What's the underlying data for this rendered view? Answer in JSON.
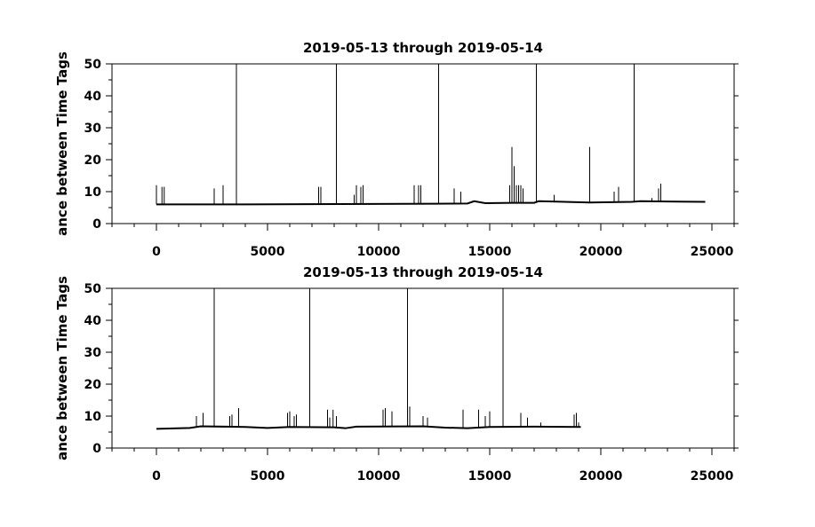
{
  "chart_data": [
    {
      "type": "line",
      "title": "2019-05-13 through 2019-05-14",
      "ylabel": "ance between Time Tags",
      "xlabel": "",
      "xlim": [
        -2000,
        26000
      ],
      "ylim": [
        0,
        50
      ],
      "xticks": [
        0,
        5000,
        10000,
        15000,
        20000,
        25000
      ],
      "yticks": [
        0,
        10,
        20,
        30,
        40,
        50
      ],
      "x_extent": [
        0,
        24700
      ],
      "baseline": [
        [
          0,
          6.0
        ],
        [
          4000,
          6.0
        ],
        [
          8200,
          6.1
        ],
        [
          12500,
          6.2
        ],
        [
          14000,
          6.3
        ],
        [
          14300,
          7.0
        ],
        [
          14800,
          6.4
        ],
        [
          16000,
          6.5
        ],
        [
          17000,
          6.5
        ],
        [
          17200,
          7.0
        ],
        [
          19500,
          6.6
        ],
        [
          21400,
          6.8
        ],
        [
          21800,
          7.0
        ],
        [
          23000,
          6.9
        ],
        [
          24700,
          6.8
        ]
      ],
      "spikes": [
        {
          "x": 0,
          "y": 12
        },
        {
          "x": 250,
          "y": 11.5
        },
        {
          "x": 350,
          "y": 11.5
        },
        {
          "x": 2600,
          "y": 11
        },
        {
          "x": 3000,
          "y": 12
        },
        {
          "x": 3600,
          "y": 50
        },
        {
          "x": 7300,
          "y": 11.5
        },
        {
          "x": 7400,
          "y": 11.5
        },
        {
          "x": 8100,
          "y": 50
        },
        {
          "x": 8900,
          "y": 9
        },
        {
          "x": 9000,
          "y": 12
        },
        {
          "x": 9200,
          "y": 11.5
        },
        {
          "x": 9300,
          "y": 12
        },
        {
          "x": 11600,
          "y": 12
        },
        {
          "x": 11800,
          "y": 12
        },
        {
          "x": 11900,
          "y": 12
        },
        {
          "x": 12700,
          "y": 50
        },
        {
          "x": 13400,
          "y": 11
        },
        {
          "x": 13700,
          "y": 10
        },
        {
          "x": 15900,
          "y": 12
        },
        {
          "x": 16000,
          "y": 24
        },
        {
          "x": 16100,
          "y": 18
        },
        {
          "x": 16200,
          "y": 12
        },
        {
          "x": 16300,
          "y": 12
        },
        {
          "x": 16400,
          "y": 12
        },
        {
          "x": 16500,
          "y": 11
        },
        {
          "x": 17100,
          "y": 50
        },
        {
          "x": 17900,
          "y": 9
        },
        {
          "x": 19500,
          "y": 24
        },
        {
          "x": 20600,
          "y": 10
        },
        {
          "x": 20800,
          "y": 11.5
        },
        {
          "x": 21500,
          "y": 50
        },
        {
          "x": 22300,
          "y": 8
        },
        {
          "x": 22600,
          "y": 11
        },
        {
          "x": 22700,
          "y": 12.5
        }
      ]
    },
    {
      "type": "line",
      "title": "2019-05-13 through 2019-05-14",
      "ylabel": "ance between Time Tags",
      "xlabel": "",
      "xlim": [
        -2000,
        26000
      ],
      "ylim": [
        0,
        50
      ],
      "xticks": [
        0,
        5000,
        10000,
        15000,
        20000,
        25000
      ],
      "yticks": [
        0,
        10,
        20,
        30,
        40,
        50
      ],
      "x_extent": [
        0,
        19100
      ],
      "baseline": [
        [
          0,
          6.0
        ],
        [
          1500,
          6.3
        ],
        [
          2000,
          6.8
        ],
        [
          4000,
          6.6
        ],
        [
          5000,
          6.3
        ],
        [
          6000,
          6.6
        ],
        [
          8000,
          6.5
        ],
        [
          8500,
          6.2
        ],
        [
          9000,
          6.7
        ],
        [
          12000,
          6.8
        ],
        [
          13000,
          6.4
        ],
        [
          14000,
          6.2
        ],
        [
          15000,
          6.6
        ],
        [
          17000,
          6.7
        ],
        [
          19100,
          6.6
        ]
      ],
      "spikes": [
        {
          "x": 1800,
          "y": 10
        },
        {
          "x": 2100,
          "y": 11
        },
        {
          "x": 2600,
          "y": 50
        },
        {
          "x": 3300,
          "y": 10
        },
        {
          "x": 3400,
          "y": 10.5
        },
        {
          "x": 3700,
          "y": 12.5
        },
        {
          "x": 5900,
          "y": 11
        },
        {
          "x": 6000,
          "y": 11.5
        },
        {
          "x": 6200,
          "y": 10
        },
        {
          "x": 6300,
          "y": 10.5
        },
        {
          "x": 6900,
          "y": 50
        },
        {
          "x": 7700,
          "y": 12
        },
        {
          "x": 7800,
          "y": 9.5
        },
        {
          "x": 7950,
          "y": 12
        },
        {
          "x": 8100,
          "y": 10
        },
        {
          "x": 10200,
          "y": 12
        },
        {
          "x": 10300,
          "y": 12.5
        },
        {
          "x": 10600,
          "y": 11.5
        },
        {
          "x": 11300,
          "y": 50
        },
        {
          "x": 11400,
          "y": 13
        },
        {
          "x": 12000,
          "y": 10
        },
        {
          "x": 12200,
          "y": 9.5
        },
        {
          "x": 13800,
          "y": 12
        },
        {
          "x": 14500,
          "y": 12
        },
        {
          "x": 14800,
          "y": 10
        },
        {
          "x": 15000,
          "y": 11.5
        },
        {
          "x": 15600,
          "y": 50
        },
        {
          "x": 16400,
          "y": 11
        },
        {
          "x": 16700,
          "y": 9.5
        },
        {
          "x": 17300,
          "y": 8
        },
        {
          "x": 18800,
          "y": 10.5
        },
        {
          "x": 18900,
          "y": 11
        },
        {
          "x": 19000,
          "y": 8
        }
      ]
    }
  ]
}
